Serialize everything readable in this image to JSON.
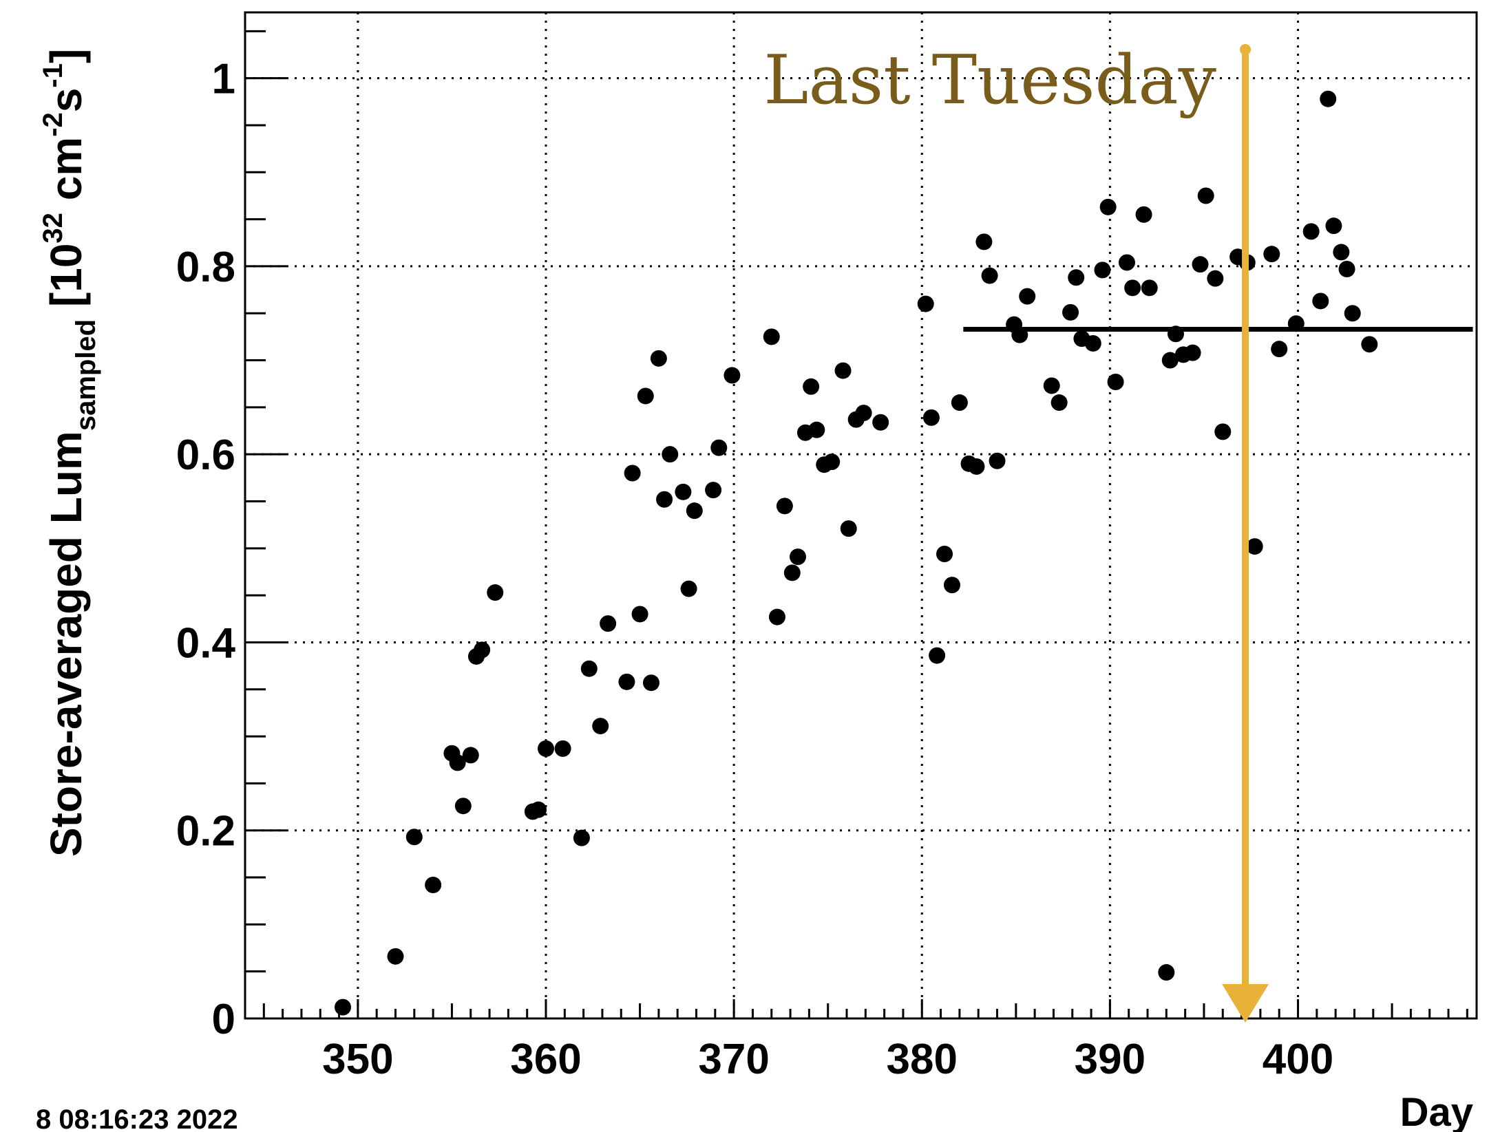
{
  "chart_data": {
    "type": "scatter",
    "xlabel": "Day",
    "ylabel": "Store-averaged Lum",
    "ylabel_subscript": "sampled",
    "ylabel_unit_open": "[10",
    "ylabel_unit_exp": "32",
    "ylabel_unit_mid": " cm",
    "ylabel_unit_exp2": "-2",
    "ylabel_unit_mid2": "s",
    "ylabel_unit_exp3": "-1",
    "ylabel_unit_close": "]",
    "xlim": [
      344,
      409.5
    ],
    "ylim": [
      0,
      1.07
    ],
    "x_ticks": [
      350,
      360,
      370,
      380,
      390,
      400
    ],
    "x_tick_labels": [
      "350",
      "360",
      "370",
      "380",
      "390",
      "400"
    ],
    "y_ticks": [
      0,
      0.2,
      0.4,
      0.6,
      0.8,
      1
    ],
    "y_tick_labels": [
      "0",
      "0.2",
      "0.4",
      "0.6",
      "0.8",
      "1"
    ],
    "grid": true,
    "grid_style": "dotted",
    "reference_line": {
      "x": [
        382.2,
        409.3
      ],
      "y": 0.733
    },
    "annotation": {
      "text": "Last Tuesday",
      "x": 397.2,
      "color": "#e8b23a",
      "text_color": "#7a5c1a"
    },
    "points": [
      [
        349.2,
        0.012
      ],
      [
        352.0,
        0.066
      ],
      [
        353.0,
        0.193
      ],
      [
        354.0,
        0.142
      ],
      [
        355.0,
        0.282
      ],
      [
        355.3,
        0.272
      ],
      [
        355.6,
        0.226
      ],
      [
        356.0,
        0.28
      ],
      [
        356.3,
        0.385
      ],
      [
        356.6,
        0.392
      ],
      [
        357.3,
        0.453
      ],
      [
        359.3,
        0.22
      ],
      [
        359.6,
        0.222
      ],
      [
        360.0,
        0.287
      ],
      [
        360.9,
        0.287
      ],
      [
        361.9,
        0.192
      ],
      [
        362.3,
        0.372
      ],
      [
        362.9,
        0.311
      ],
      [
        363.3,
        0.42
      ],
      [
        364.3,
        0.358
      ],
      [
        364.6,
        0.58
      ],
      [
        365.0,
        0.43
      ],
      [
        365.3,
        0.662
      ],
      [
        365.6,
        0.357
      ],
      [
        366.0,
        0.702
      ],
      [
        366.3,
        0.552
      ],
      [
        366.6,
        0.6
      ],
      [
        367.3,
        0.56
      ],
      [
        367.6,
        0.457
      ],
      [
        367.9,
        0.54
      ],
      [
        368.9,
        0.562
      ],
      [
        369.2,
        0.607
      ],
      [
        369.9,
        0.684
      ],
      [
        372.0,
        0.725
      ],
      [
        372.3,
        0.427
      ],
      [
        372.7,
        0.545
      ],
      [
        373.1,
        0.474
      ],
      [
        373.4,
        0.491
      ],
      [
        373.8,
        0.623
      ],
      [
        374.1,
        0.672
      ],
      [
        374.4,
        0.626
      ],
      [
        374.8,
        0.589
      ],
      [
        375.2,
        0.592
      ],
      [
        375.8,
        0.689
      ],
      [
        376.1,
        0.521
      ],
      [
        376.5,
        0.637
      ],
      [
        376.9,
        0.644
      ],
      [
        377.8,
        0.634
      ],
      [
        380.2,
        0.76
      ],
      [
        380.5,
        0.639
      ],
      [
        380.8,
        0.386
      ],
      [
        381.2,
        0.494
      ],
      [
        381.6,
        0.461
      ],
      [
        382.0,
        0.655
      ],
      [
        382.5,
        0.59
      ],
      [
        382.9,
        0.587
      ],
      [
        383.3,
        0.826
      ],
      [
        383.6,
        0.79
      ],
      [
        384.0,
        0.593
      ],
      [
        384.9,
        0.738
      ],
      [
        385.2,
        0.727
      ],
      [
        385.6,
        0.768
      ],
      [
        386.9,
        0.673
      ],
      [
        387.3,
        0.655
      ],
      [
        387.9,
        0.751
      ],
      [
        388.2,
        0.788
      ],
      [
        388.5,
        0.723
      ],
      [
        389.1,
        0.718
      ],
      [
        389.6,
        0.796
      ],
      [
        389.9,
        0.863
      ],
      [
        390.3,
        0.677
      ],
      [
        390.9,
        0.804
      ],
      [
        391.2,
        0.777
      ],
      [
        391.8,
        0.855
      ],
      [
        392.1,
        0.777
      ],
      [
        393.0,
        0.049
      ],
      [
        393.2,
        0.7
      ],
      [
        393.5,
        0.728
      ],
      [
        393.9,
        0.706
      ],
      [
        394.4,
        0.708
      ],
      [
        394.8,
        0.802
      ],
      [
        395.1,
        0.875
      ],
      [
        395.6,
        0.787
      ],
      [
        396.0,
        0.624
      ],
      [
        396.8,
        0.81
      ],
      [
        397.3,
        0.804
      ],
      [
        397.7,
        0.502
      ],
      [
        398.6,
        0.813
      ],
      [
        399.0,
        0.712
      ],
      [
        399.9,
        0.739
      ],
      [
        400.7,
        0.837
      ],
      [
        401.2,
        0.763
      ],
      [
        401.6,
        0.978
      ],
      [
        401.9,
        0.843
      ],
      [
        402.3,
        0.815
      ],
      [
        402.6,
        0.797
      ],
      [
        402.9,
        0.75
      ],
      [
        403.8,
        0.717
      ]
    ]
  },
  "footer": {
    "timestamp": "8 08:16:23 2022"
  }
}
